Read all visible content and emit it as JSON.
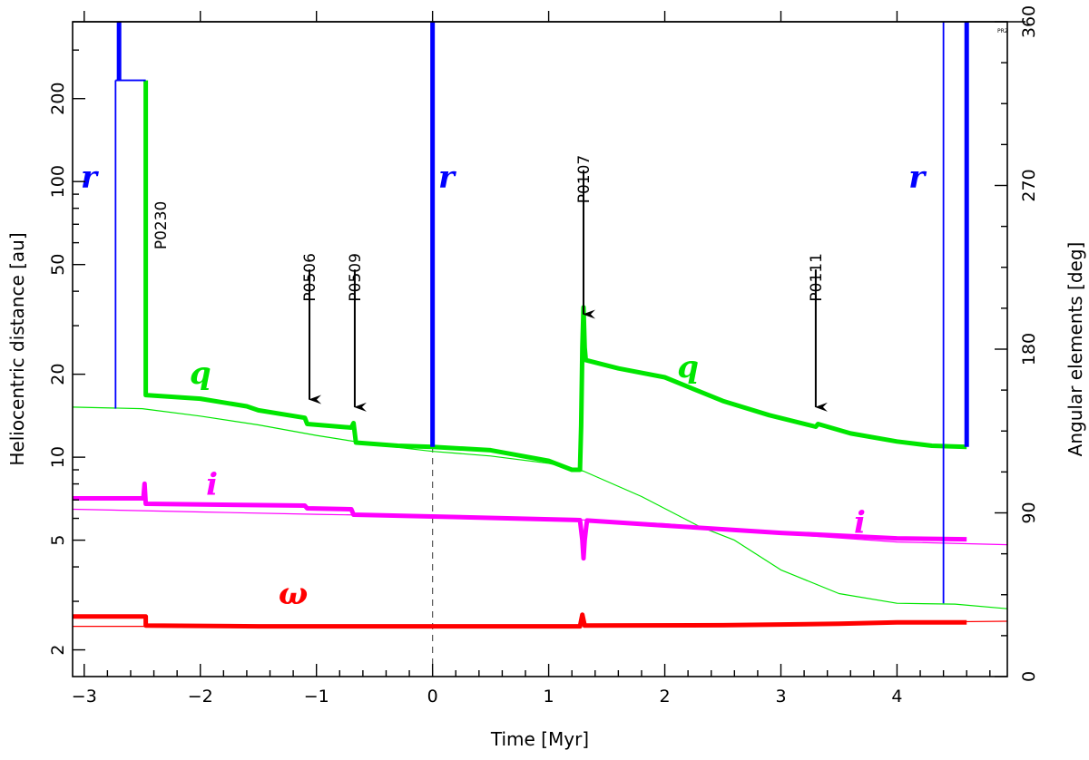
{
  "chart_data": {
    "type": "line",
    "xlabel": "Time [Myr]",
    "ylabel_left": "Heliocentric distance [au]",
    "ylabel_right": "Angular elements [deg]",
    "xlim": [
      -3.1,
      4.95
    ],
    "ylim_left": [
      1.6,
      380
    ],
    "ylim_right": [
      0,
      360
    ],
    "left_scale": "log",
    "x_ticks": [
      -3,
      -2,
      -1,
      0,
      1,
      2,
      3,
      4
    ],
    "x_tick_labels": [
      "−3",
      "−2",
      "−1",
      "0",
      "1",
      "2",
      "3",
      "4"
    ],
    "y_left_ticks": [
      2,
      5,
      10,
      20,
      50,
      100,
      200
    ],
    "y_left_tick_labels": [
      "2",
      "5",
      "10",
      "20",
      "50",
      "100",
      "200"
    ],
    "y_right_ticks": [
      0,
      90,
      180,
      270,
      360
    ],
    "y_right_tick_labels": [
      "0",
      "90",
      "180",
      "270",
      "360"
    ],
    "corner_note": "PR2",
    "colors": {
      "r": "#0000ff",
      "q": "#00e600",
      "i": "#ff00ff",
      "omega": "#ff0000",
      "events": "#000000"
    },
    "series": [
      {
        "name": "q",
        "axis": "left",
        "label": "q",
        "style": "thick",
        "points": [
          [
            -2.47,
            233
          ],
          [
            -2.47,
            16.8
          ],
          [
            -2.0,
            16.3
          ],
          [
            -1.6,
            15.3
          ],
          [
            -1.5,
            14.8
          ],
          [
            -1.1,
            13.9
          ],
          [
            -1.08,
            13.2
          ],
          [
            -0.7,
            12.8
          ],
          [
            -0.68,
            13.3
          ],
          [
            -0.66,
            11.3
          ],
          [
            -0.3,
            11.0
          ],
          [
            0.0,
            10.9
          ],
          [
            0.5,
            10.6
          ],
          [
            1.0,
            9.7
          ],
          [
            1.2,
            9.0
          ],
          [
            1.27,
            9.0
          ],
          [
            1.28,
            13.0
          ],
          [
            1.29,
            25.0
          ],
          [
            1.3,
            35.0
          ],
          [
            1.31,
            25.0
          ],
          [
            1.32,
            22.5
          ],
          [
            1.6,
            21.0
          ],
          [
            2.0,
            19.5
          ],
          [
            2.5,
            16.0
          ],
          [
            2.9,
            14.2
          ],
          [
            3.3,
            12.9
          ],
          [
            3.32,
            13.2
          ],
          [
            3.6,
            12.2
          ],
          [
            4.0,
            11.4
          ],
          [
            4.3,
            11.0
          ],
          [
            4.6,
            10.9
          ]
        ]
      },
      {
        "name": "q (nominal)",
        "axis": "left",
        "style": "thin",
        "points": [
          [
            -3.1,
            15.2
          ],
          [
            -2.5,
            15.0
          ],
          [
            -2.0,
            14.1
          ],
          [
            -1.5,
            13.1
          ],
          [
            -1.0,
            12.0
          ],
          [
            -0.5,
            11.1
          ],
          [
            0.0,
            10.5
          ],
          [
            0.5,
            10.1
          ],
          [
            1.0,
            9.5
          ],
          [
            1.3,
            8.9
          ],
          [
            1.8,
            7.2
          ],
          [
            2.3,
            5.6
          ],
          [
            2.6,
            5.0
          ],
          [
            3.0,
            3.9
          ],
          [
            3.5,
            3.2
          ],
          [
            4.0,
            2.95
          ],
          [
            4.5,
            2.93
          ],
          [
            4.95,
            2.82
          ]
        ]
      },
      {
        "name": "i",
        "axis": "right",
        "label": "i",
        "style": "thick",
        "points": [
          [
            -3.1,
            98
          ],
          [
            -2.5,
            98
          ],
          [
            -2.49,
            98
          ],
          [
            -2.48,
            106
          ],
          [
            -2.47,
            95
          ],
          [
            -1.1,
            94
          ],
          [
            -1.08,
            92.5
          ],
          [
            -0.7,
            92
          ],
          [
            -0.68,
            89
          ],
          [
            0.0,
            88
          ],
          [
            1.27,
            86
          ],
          [
            1.29,
            75
          ],
          [
            1.3,
            65
          ],
          [
            1.31,
            75
          ],
          [
            1.33,
            85.8
          ],
          [
            2.0,
            83
          ],
          [
            3.0,
            79
          ],
          [
            4.0,
            76
          ],
          [
            4.6,
            75.5
          ]
        ]
      },
      {
        "name": "i (nominal)",
        "axis": "right",
        "style": "thin",
        "points": [
          [
            -3.1,
            92
          ],
          [
            -2.0,
            90.5
          ],
          [
            -1.0,
            89.2
          ],
          [
            0.0,
            88.1
          ],
          [
            1.0,
            87
          ],
          [
            2.0,
            84
          ],
          [
            3.0,
            78.5
          ],
          [
            4.0,
            74
          ],
          [
            4.95,
            72.5
          ]
        ]
      },
      {
        "name": "omega",
        "axis": "right",
        "label": "ω",
        "style": "thick",
        "points": [
          [
            -3.1,
            33
          ],
          [
            -2.47,
            33
          ],
          [
            -2.47,
            28
          ],
          [
            -1.5,
            27.6
          ],
          [
            0.0,
            27.6
          ],
          [
            1.27,
            27.6
          ],
          [
            1.29,
            34
          ],
          [
            1.31,
            28
          ],
          [
            2.5,
            28.2
          ],
          [
            3.5,
            29.0
          ],
          [
            4.0,
            29.8
          ],
          [
            4.6,
            29.8
          ]
        ]
      },
      {
        "name": "omega (nominal)",
        "axis": "right",
        "style": "thin",
        "points": [
          [
            -3.1,
            27.6
          ],
          [
            -1.0,
            27.6
          ],
          [
            0.0,
            27.7
          ],
          [
            1.0,
            27.9
          ],
          [
            2.0,
            28.1
          ],
          [
            3.0,
            28.9
          ],
          [
            4.0,
            29.8
          ],
          [
            4.95,
            30.4
          ]
        ]
      }
    ],
    "r_bars": [
      {
        "x": 0.0,
        "from": 10.9,
        "to": 380,
        "style": "thick",
        "label": "r",
        "label_x": 0.12,
        "label_y": 95
      },
      {
        "x": -2.7,
        "from": 233,
        "to": 380,
        "style": "thick"
      },
      {
        "x": -2.73,
        "from": 15.0,
        "to": 233,
        "style": "thin",
        "label": "r",
        "label_x": -2.96,
        "label_y": 95
      },
      {
        "x": 4.6,
        "from": 10.9,
        "to": 380,
        "style": "thick"
      },
      {
        "x": 4.4,
        "from": 2.95,
        "to": 380,
        "style": "thin",
        "label": "r",
        "label_x": 4.17,
        "label_y": 95
      }
    ],
    "r_link": {
      "from_x": -2.73,
      "to_x": -2.47,
      "y": 233
    },
    "vline_dashed": {
      "x": 0.0,
      "from": 1.6,
      "to": 10.9
    },
    "events": [
      {
        "label": "P0230",
        "x": -2.34,
        "label_y": 85,
        "arrow": false
      },
      {
        "label": "P0506",
        "x": -1.06,
        "label_y": 55,
        "arrow": true,
        "arrow_from": 48,
        "arrow_to": 16.2
      },
      {
        "label": "P0509",
        "x": -0.67,
        "label_y": 55,
        "arrow": true,
        "arrow_from": 48,
        "arrow_to": 15.2
      },
      {
        "label": "P0107",
        "x": 1.3,
        "label_y": 125,
        "arrow": true,
        "arrow_from": 110,
        "arrow_to": 33
      },
      {
        "label": "P0111",
        "x": 3.3,
        "label_y": 55,
        "arrow": true,
        "arrow_from": 48,
        "arrow_to": 15.2
      }
    ],
    "series_labels": [
      {
        "series": "q",
        "text": "q",
        "x": -2.0,
        "y": 18.5,
        "axis": "left",
        "color": "#00e600"
      },
      {
        "series": "q",
        "text": "q",
        "x": 2.2,
        "y": 19.5,
        "axis": "left",
        "color": "#00e600"
      },
      {
        "series": "i",
        "text": "i",
        "x": -1.9,
        "y": 100,
        "axis": "right",
        "color": "#ff00ff"
      },
      {
        "series": "i",
        "text": "i",
        "x": 3.68,
        "y": 79,
        "axis": "right",
        "color": "#ff00ff"
      },
      {
        "series": "omega",
        "text": "ω",
        "x": -1.2,
        "y": 40,
        "axis": "right",
        "color": "#ff0000"
      }
    ]
  }
}
